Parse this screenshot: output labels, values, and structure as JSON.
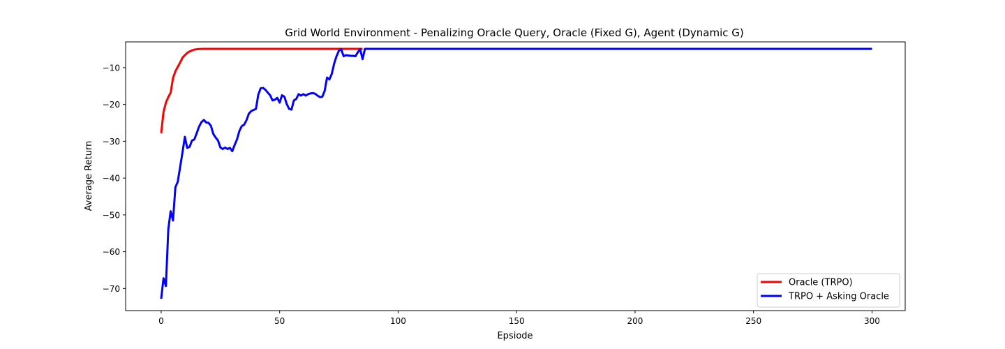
{
  "chart_data": {
    "type": "line",
    "title": "Grid World Environment - Penalizing Oracle Query, Oracle (Fixed G), Agent (Dynamic G)",
    "xlabel": "Epsiode",
    "ylabel": "Average Return",
    "xlim": [
      -15,
      314
    ],
    "ylim": [
      -76,
      -3
    ],
    "xticks": [
      0,
      50,
      100,
      150,
      200,
      250,
      300
    ],
    "yticks": [
      -10,
      -20,
      -30,
      -40,
      -50,
      -60,
      -70
    ],
    "grid": false,
    "legend_position": "lower-right",
    "series": [
      {
        "name": "Oracle (TRPO)",
        "color": "#ff0000",
        "x": [
          0,
          1,
          2,
          3,
          4,
          5,
          6,
          7,
          8,
          9,
          10,
          11,
          12,
          13,
          14,
          15,
          16,
          17,
          18,
          19,
          20,
          25,
          30,
          40,
          50,
          60,
          70,
          80,
          85
        ],
        "y": [
          -27.8,
          -22.0,
          -19.5,
          -18.0,
          -16.8,
          -12.8,
          -11.0,
          -9.8,
          -8.6,
          -7.3,
          -6.6,
          -6.0,
          -5.6,
          -5.3,
          -5.1,
          -5.0,
          -4.95,
          -4.92,
          -4.9,
          -4.9,
          -4.9,
          -4.9,
          -4.9,
          -4.9,
          -4.9,
          -4.9,
          -4.9,
          -4.9,
          -4.9
        ]
      },
      {
        "name": "TRPO + Asking Oracle",
        "color": "#0000ff",
        "x": [
          0,
          1,
          2,
          3,
          4,
          5,
          6,
          7,
          8,
          9,
          10,
          11,
          12,
          13,
          14,
          15,
          16,
          17,
          18,
          19,
          20,
          21,
          22,
          23,
          24,
          25,
          26,
          27,
          28,
          29,
          30,
          31,
          32,
          33,
          34,
          35,
          36,
          37,
          38,
          39,
          40,
          41,
          42,
          43,
          44,
          45,
          46,
          47,
          48,
          49,
          50,
          51,
          52,
          53,
          54,
          55,
          56,
          57,
          58,
          59,
          60,
          61,
          62,
          63,
          64,
          65,
          66,
          67,
          68,
          69,
          70,
          71,
          72,
          73,
          74,
          75,
          76,
          77,
          78,
          79,
          80,
          81,
          82,
          83,
          84,
          85,
          86,
          100,
          150,
          200,
          250,
          300
        ],
        "y": [
          -72.8,
          -67.2,
          -69.3,
          -54.0,
          -49.0,
          -51.5,
          -42.5,
          -41.0,
          -37.0,
          -33.0,
          -28.8,
          -31.8,
          -31.5,
          -29.8,
          -29.5,
          -27.8,
          -26.0,
          -24.8,
          -24.2,
          -24.9,
          -25.0,
          -25.8,
          -28.0,
          -29.0,
          -29.8,
          -31.7,
          -32.1,
          -31.7,
          -32.1,
          -31.8,
          -32.7,
          -31.0,
          -29.5,
          -27.2,
          -25.9,
          -25.5,
          -24.3,
          -22.5,
          -21.8,
          -21.5,
          -21.2,
          -17.3,
          -15.6,
          -15.5,
          -16.0,
          -16.8,
          -17.5,
          -18.9,
          -18.7,
          -18.2,
          -19.5,
          -17.5,
          -17.9,
          -19.9,
          -21.2,
          -21.4,
          -18.9,
          -18.5,
          -17.2,
          -17.6,
          -17.2,
          -17.6,
          -17.2,
          -17.0,
          -16.9,
          -17.1,
          -17.6,
          -18.0,
          -17.9,
          -16.3,
          -12.7,
          -13.2,
          -11.7,
          -8.9,
          -6.9,
          -5.4,
          -5.0,
          -6.9,
          -6.6,
          -6.7,
          -6.8,
          -6.8,
          -6.9,
          -5.8,
          -5.0,
          -7.7,
          -4.9,
          -4.9,
          -4.9,
          -4.9,
          -4.9,
          -4.9
        ]
      }
    ]
  }
}
